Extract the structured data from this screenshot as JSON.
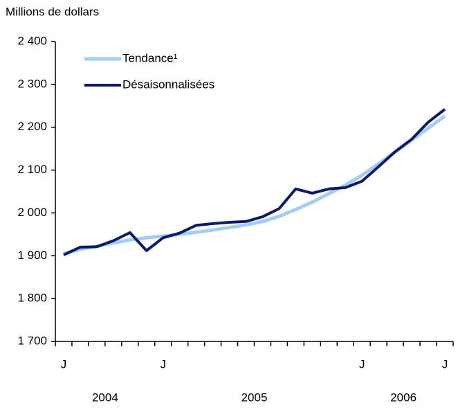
{
  "chart_data": {
    "type": "line",
    "y_axis_label": "Millions de dollars",
    "categories": [
      "J",
      null,
      null,
      null,
      null,
      null,
      "J",
      null,
      null,
      null,
      null,
      null,
      null,
      null,
      null,
      null,
      null,
      null,
      "J",
      null,
      null,
      null,
      null,
      "J"
    ],
    "year_labels": [
      "2004",
      "2005",
      "2006"
    ],
    "series": [
      {
        "name": "Tendance¹",
        "color": "#a3cdf2",
        "values": [
          1905,
          1915,
          1922,
          1930,
          1937,
          1942,
          1946,
          1950,
          1955,
          1960,
          1966,
          1972,
          1980,
          1992,
          2008,
          2025,
          2045,
          2065,
          2088,
          2115,
          2142,
          2170,
          2198,
          2226
        ]
      },
      {
        "name": "Désaisonnalisées",
        "color": "#0d1a6b",
        "values": [
          1902,
          1920,
          1921,
          1935,
          1954,
          1912,
          1942,
          1953,
          1971,
          1975,
          1978,
          1980,
          1991,
          2010,
          2056,
          2046,
          2056,
          2059,
          2074,
          2108,
          2143,
          2172,
          2212,
          2242
        ]
      }
    ],
    "ylim": [
      1700,
      2400
    ],
    "yticks": [
      {
        "value": 1700,
        "label": "1 700"
      },
      {
        "value": 1800,
        "label": "1 800"
      },
      {
        "value": 1900,
        "label": "1 900"
      },
      {
        "value": 2000,
        "label": "2 000"
      },
      {
        "value": 2100,
        "label": "2 100"
      },
      {
        "value": 2200,
        "label": "2 200"
      },
      {
        "value": 2300,
        "label": "2 300"
      },
      {
        "value": 2400,
        "label": "2 400"
      }
    ],
    "legend": "upper left"
  }
}
